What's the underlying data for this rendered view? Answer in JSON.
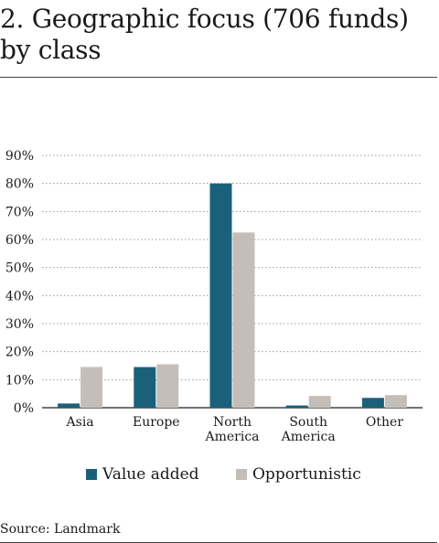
{
  "title": "2. Geographic focus (706 funds)  by class",
  "source": "Source: Landmark",
  "colors": {
    "value_added": "#1b6079",
    "opportunistic": "#c3beb8",
    "grid": "#9a9a9a",
    "axis": "#444444"
  },
  "chart_data": {
    "type": "bar",
    "title": "2. Geographic focus (706 funds)  by class",
    "xlabel": "",
    "ylabel": "",
    "categories": [
      [
        "Asia"
      ],
      [
        "Europe"
      ],
      [
        "North",
        "America"
      ],
      [
        "South",
        "America"
      ],
      [
        "Other"
      ]
    ],
    "series": [
      {
        "name": "Value added",
        "color": "#1b6079",
        "values": [
          1.5,
          14.5,
          80,
          0.8,
          3.5
        ]
      },
      {
        "name": "Opportunistic",
        "color": "#c3beb8",
        "values": [
          14.5,
          15.5,
          62.5,
          4.2,
          4.5
        ]
      }
    ],
    "ylim": [
      0,
      90
    ],
    "yticks": [
      0,
      10,
      20,
      30,
      40,
      50,
      60,
      70,
      80,
      90
    ],
    "ytick_format": "%",
    "grid": true,
    "grid_style": "dotted",
    "legend_position": "bottom"
  }
}
